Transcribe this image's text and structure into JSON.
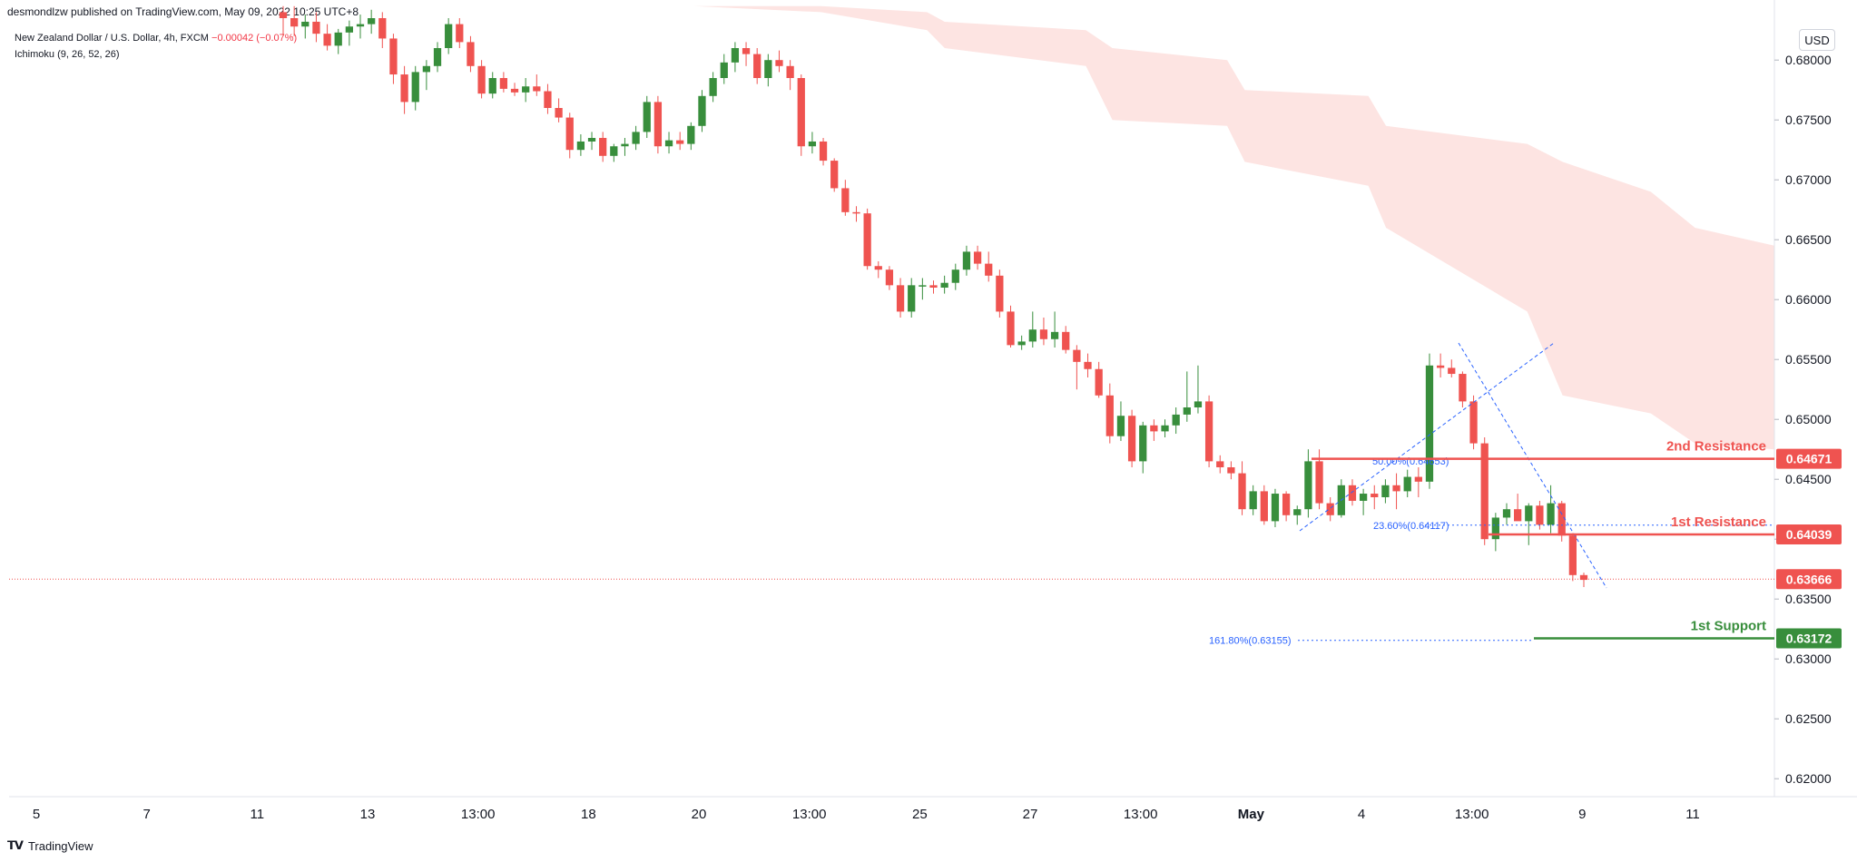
{
  "header": {
    "credit": "desmondlzw published on TradingView.com, May 09, 2022 10:25 UTC+8"
  },
  "legend": {
    "symbol": "New Zealand Dollar / U.S. Dollar, 4h, FXCM",
    "change": "−0.00042 (−0.07%)",
    "indicator": "Ichimoku (9, 26, 52, 26)"
  },
  "currency": "USD",
  "footer": {
    "brand": "TradingView"
  },
  "colors": {
    "up": "#388e3c",
    "down": "#ef5350",
    "cloud": "#fde4e2",
    "resistance": "#ef5350",
    "support": "#388e3c",
    "fib": "#2962ff"
  },
  "chart_data": {
    "type": "candlestick",
    "timeframe": "4h",
    "ylim": [
      0.6185,
      0.6835
    ],
    "y_ticks": [
      "0.68000",
      "0.67500",
      "0.67000",
      "0.66500",
      "0.66000",
      "0.65500",
      "0.65000",
      "0.64500",
      "0.64000",
      "0.63500",
      "0.63000",
      "0.62500",
      "0.62000"
    ],
    "x_ticks": [
      "5",
      "7",
      "11",
      "13",
      "13:00",
      "18",
      "20",
      "13:00",
      "25",
      "27",
      "13:00",
      "May",
      "4",
      "13:00",
      "9",
      "11"
    ],
    "candles": [
      [
        0.684,
        0.6845,
        0.682,
        0.6835
      ],
      [
        0.6835,
        0.6845,
        0.682,
        0.6828
      ],
      [
        0.6828,
        0.6838,
        0.6818,
        0.6832
      ],
      [
        0.6832,
        0.684,
        0.6815,
        0.6822
      ],
      [
        0.6822,
        0.683,
        0.6808,
        0.6812
      ],
      [
        0.6812,
        0.6826,
        0.6805,
        0.6823
      ],
      [
        0.6823,
        0.6833,
        0.6812,
        0.6828
      ],
      [
        0.6828,
        0.6838,
        0.6818,
        0.683
      ],
      [
        0.683,
        0.6842,
        0.6822,
        0.6835
      ],
      [
        0.6835,
        0.684,
        0.681,
        0.6818
      ],
      [
        0.6818,
        0.6822,
        0.678,
        0.6788
      ],
      [
        0.6788,
        0.6795,
        0.6755,
        0.6765
      ],
      [
        0.6765,
        0.6795,
        0.6758,
        0.679
      ],
      [
        0.679,
        0.68,
        0.6775,
        0.6795
      ],
      [
        0.6795,
        0.6815,
        0.679,
        0.681
      ],
      [
        0.681,
        0.6835,
        0.6805,
        0.683
      ],
      [
        0.683,
        0.6835,
        0.681,
        0.6815
      ],
      [
        0.6815,
        0.682,
        0.679,
        0.6795
      ],
      [
        0.6795,
        0.68,
        0.6768,
        0.6772
      ],
      [
        0.6772,
        0.679,
        0.6768,
        0.6785
      ],
      [
        0.6785,
        0.679,
        0.6773,
        0.6776
      ],
      [
        0.6776,
        0.6781,
        0.677,
        0.6773
      ],
      [
        0.6773,
        0.6785,
        0.6765,
        0.6778
      ],
      [
        0.6778,
        0.6788,
        0.677,
        0.6774
      ],
      [
        0.6774,
        0.678,
        0.6755,
        0.676
      ],
      [
        0.676,
        0.6768,
        0.6748,
        0.6752
      ],
      [
        0.6752,
        0.6756,
        0.6718,
        0.6725
      ],
      [
        0.6725,
        0.6738,
        0.672,
        0.6732
      ],
      [
        0.6732,
        0.674,
        0.6725,
        0.6735
      ],
      [
        0.6735,
        0.674,
        0.6715,
        0.672
      ],
      [
        0.672,
        0.673,
        0.6715,
        0.6728
      ],
      [
        0.6728,
        0.6735,
        0.672,
        0.673
      ],
      [
        0.673,
        0.6745,
        0.6725,
        0.674
      ],
      [
        0.674,
        0.677,
        0.6735,
        0.6765
      ],
      [
        0.6765,
        0.677,
        0.6722,
        0.6728
      ],
      [
        0.6728,
        0.674,
        0.6722,
        0.6733
      ],
      [
        0.6733,
        0.674,
        0.6725,
        0.673
      ],
      [
        0.673,
        0.6748,
        0.6725,
        0.6745
      ],
      [
        0.6745,
        0.6775,
        0.674,
        0.677
      ],
      [
        0.677,
        0.679,
        0.6765,
        0.6785
      ],
      [
        0.6785,
        0.6805,
        0.678,
        0.6798
      ],
      [
        0.6798,
        0.6815,
        0.679,
        0.681
      ],
      [
        0.681,
        0.6815,
        0.6795,
        0.6805
      ],
      [
        0.6805,
        0.681,
        0.678,
        0.6785
      ],
      [
        0.6785,
        0.6805,
        0.6778,
        0.68
      ],
      [
        0.68,
        0.6808,
        0.679,
        0.6795
      ],
      [
        0.6795,
        0.68,
        0.6775,
        0.6785
      ],
      [
        0.6785,
        0.6788,
        0.672,
        0.6728
      ],
      [
        0.6728,
        0.674,
        0.6722,
        0.6732
      ],
      [
        0.6732,
        0.6735,
        0.6712,
        0.6716
      ],
      [
        0.6716,
        0.6718,
        0.669,
        0.6693
      ],
      [
        0.6693,
        0.67,
        0.667,
        0.6673
      ],
      [
        0.6673,
        0.6678,
        0.6665,
        0.6672
      ],
      [
        0.6672,
        0.6676,
        0.6625,
        0.6628
      ],
      [
        0.6628,
        0.6632,
        0.6618,
        0.6625
      ],
      [
        0.6625,
        0.6628,
        0.6608,
        0.6612
      ],
      [
        0.6612,
        0.6618,
        0.6585,
        0.659
      ],
      [
        0.659,
        0.6618,
        0.6585,
        0.6612
      ],
      [
        0.6612,
        0.6618,
        0.66,
        0.6612
      ],
      [
        0.6612,
        0.6616,
        0.6605,
        0.661
      ],
      [
        0.661,
        0.662,
        0.6605,
        0.6614
      ],
      [
        0.6614,
        0.663,
        0.6608,
        0.6625
      ],
      [
        0.6625,
        0.6645,
        0.662,
        0.664
      ],
      [
        0.664,
        0.6645,
        0.6625,
        0.663
      ],
      [
        0.663,
        0.664,
        0.6615,
        0.662
      ],
      [
        0.662,
        0.6625,
        0.6585,
        0.659
      ],
      [
        0.659,
        0.6595,
        0.656,
        0.6562
      ],
      [
        0.6562,
        0.657,
        0.6558,
        0.6565
      ],
      [
        0.6565,
        0.659,
        0.656,
        0.6575
      ],
      [
        0.6575,
        0.6585,
        0.6562,
        0.6567
      ],
      [
        0.6567,
        0.659,
        0.656,
        0.6573
      ],
      [
        0.6573,
        0.6578,
        0.6555,
        0.6558
      ],
      [
        0.6558,
        0.6562,
        0.6525,
        0.6548
      ],
      [
        0.6548,
        0.6555,
        0.6535,
        0.6542
      ],
      [
        0.6542,
        0.6548,
        0.6518,
        0.652
      ],
      [
        0.652,
        0.653,
        0.648,
        0.6486
      ],
      [
        0.6486,
        0.6515,
        0.6482,
        0.6503
      ],
      [
        0.6503,
        0.6508,
        0.646,
        0.6465
      ],
      [
        0.6465,
        0.6498,
        0.6455,
        0.6495
      ],
      [
        0.6495,
        0.65,
        0.6482,
        0.649
      ],
      [
        0.649,
        0.65,
        0.6485,
        0.6495
      ],
      [
        0.6495,
        0.651,
        0.6488,
        0.6504
      ],
      [
        0.6504,
        0.654,
        0.6498,
        0.651
      ],
      [
        0.651,
        0.6545,
        0.6505,
        0.6515
      ],
      [
        0.6515,
        0.652,
        0.646,
        0.6465
      ],
      [
        0.6465,
        0.647,
        0.6455,
        0.646
      ],
      [
        0.646,
        0.6465,
        0.645,
        0.6455
      ],
      [
        0.6455,
        0.6465,
        0.642,
        0.6425
      ],
      [
        0.6425,
        0.6445,
        0.642,
        0.644
      ],
      [
        0.644,
        0.6445,
        0.6412,
        0.6415
      ],
      [
        0.6415,
        0.6442,
        0.641,
        0.6438
      ],
      [
        0.6438,
        0.644,
        0.6415,
        0.642
      ],
      [
        0.642,
        0.6428,
        0.6412,
        0.6425
      ],
      [
        0.6425,
        0.6475,
        0.6418,
        0.6465
      ],
      [
        0.6465,
        0.6475,
        0.6425,
        0.643
      ],
      [
        0.643,
        0.6435,
        0.6415,
        0.642
      ],
      [
        0.642,
        0.645,
        0.6418,
        0.6445
      ],
      [
        0.6445,
        0.645,
        0.6428,
        0.6432
      ],
      [
        0.6432,
        0.6442,
        0.642,
        0.6438
      ],
      [
        0.6438,
        0.6445,
        0.6425,
        0.6435
      ],
      [
        0.6435,
        0.645,
        0.643,
        0.6445
      ],
      [
        0.6445,
        0.6455,
        0.6425,
        0.644
      ],
      [
        0.644,
        0.6458,
        0.6435,
        0.6452
      ],
      [
        0.6452,
        0.646,
        0.6435,
        0.6448
      ],
      [
        0.6448,
        0.6555,
        0.6442,
        0.6545
      ],
      [
        0.6545,
        0.6555,
        0.6535,
        0.6543
      ],
      [
        0.6543,
        0.655,
        0.6535,
        0.6538
      ],
      [
        0.6538,
        0.654,
        0.651,
        0.6515
      ],
      [
        0.6515,
        0.652,
        0.6475,
        0.648
      ],
      [
        0.648,
        0.6485,
        0.6395,
        0.64
      ],
      [
        0.64,
        0.6422,
        0.639,
        0.6418
      ],
      [
        0.6418,
        0.643,
        0.6412,
        0.6425
      ],
      [
        0.6425,
        0.6438,
        0.642,
        0.6415
      ],
      [
        0.6415,
        0.643,
        0.6395,
        0.6428
      ],
      [
        0.6428,
        0.6432,
        0.6408,
        0.6412
      ],
      [
        0.6412,
        0.6445,
        0.6405,
        0.643
      ],
      [
        0.643,
        0.6432,
        0.6398,
        0.6403
      ],
      [
        0.6403,
        0.6405,
        0.6365,
        0.637
      ],
      [
        0.637,
        0.6372,
        0.636,
        0.6366
      ]
    ],
    "cloud": {
      "x_frac": [
        0.388,
        0.46,
        0.52,
        0.53,
        0.61,
        0.625,
        0.69,
        0.7,
        0.77,
        0.78,
        0.86,
        0.88,
        0.93,
        0.955,
        1.0
      ],
      "upper": [
        0.6845,
        0.6845,
        0.684,
        0.6832,
        0.6825,
        0.681,
        0.68,
        0.6775,
        0.677,
        0.6745,
        0.673,
        0.6715,
        0.669,
        0.666,
        0.6645
      ],
      "lower": [
        0.6845,
        0.684,
        0.6825,
        0.681,
        0.6795,
        0.675,
        0.6745,
        0.6715,
        0.6695,
        0.666,
        0.659,
        0.652,
        0.6505,
        0.648,
        0.6475
      ]
    },
    "levels": [
      {
        "label": "2nd Resistance",
        "value": 0.64671,
        "tag": "0.64671",
        "kind": "resistance"
      },
      {
        "label": "1st Resistance",
        "value": 0.64039,
        "tag": "0.64039",
        "kind": "resistance"
      },
      {
        "label": "1st Support",
        "value": 0.63172,
        "tag": "0.63172",
        "kind": "support"
      }
    ],
    "last_price": {
      "value": 0.63666,
      "tag": "0.63666"
    },
    "fib_labels": [
      {
        "text": "50.00%(0.64653)",
        "value": 0.64653
      },
      {
        "text": "23.60%(0.64117)",
        "value": 0.64117
      },
      {
        "text": "161.80%(0.63155)",
        "value": 0.63155
      }
    ]
  }
}
